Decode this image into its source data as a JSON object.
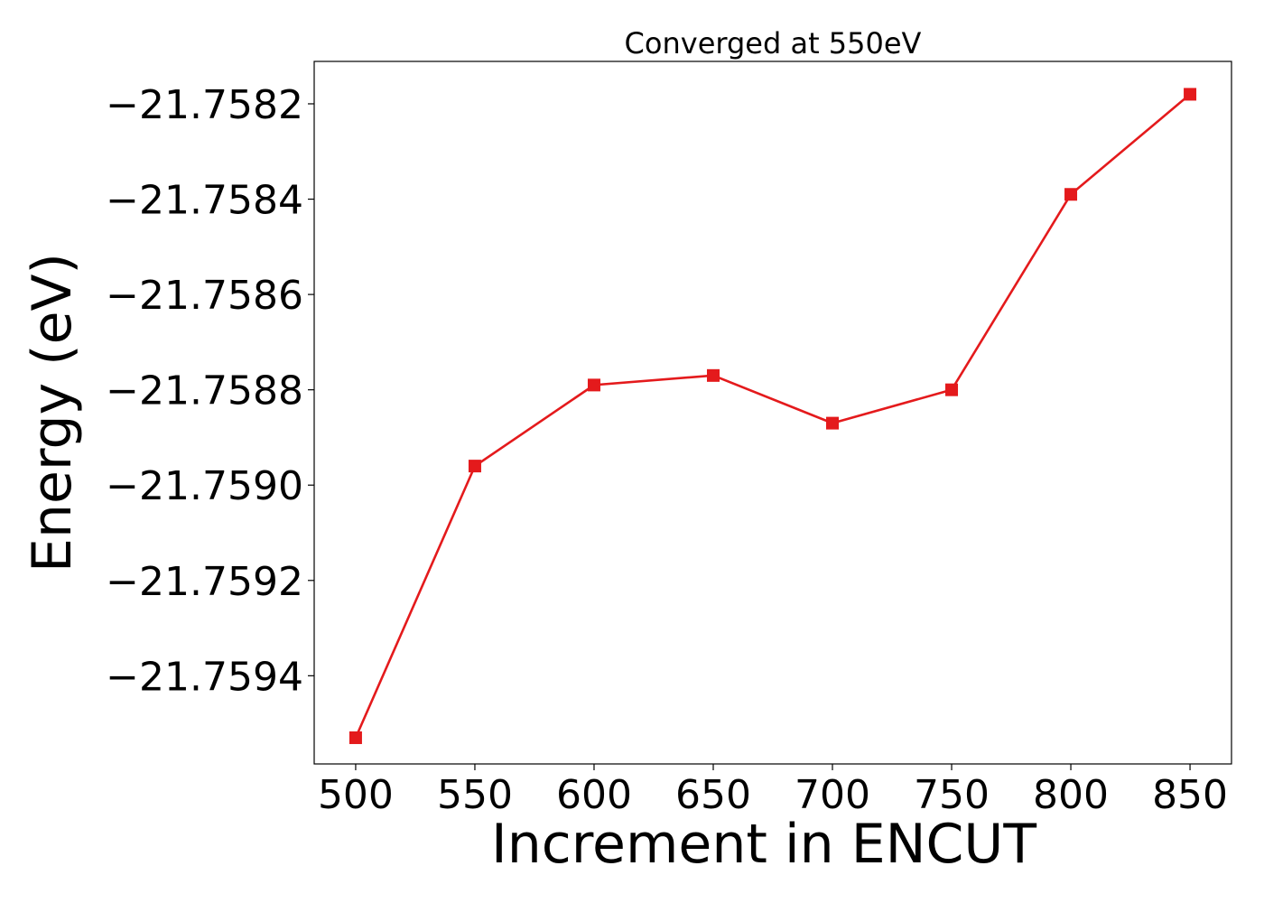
{
  "chart_data": {
    "type": "line",
    "title": "Converged at 550eV",
    "xlabel": "Increment in ENCUT",
    "ylabel": "Energy (eV)",
    "x": [
      500,
      550,
      600,
      650,
      700,
      750,
      800,
      850
    ],
    "series": [
      {
        "values": [
          -21.75953,
          -21.75896,
          -21.75879,
          -21.75877,
          -21.75887,
          -21.7588,
          -21.75839,
          -21.75818
        ],
        "color": "#e41a1c",
        "marker": "square"
      }
    ],
    "x_ticks": [
      500,
      550,
      600,
      650,
      700,
      750,
      800,
      850
    ],
    "x_tick_labels": [
      "500",
      "550",
      "600",
      "650",
      "700",
      "750",
      "800",
      "850"
    ],
    "y_ticks": [
      -21.7594,
      -21.7592,
      -21.759,
      -21.7588,
      -21.7586,
      -21.7584,
      -21.7582
    ],
    "y_tick_labels": [
      "−21.7594",
      "−21.7592",
      "−21.7590",
      "−21.7588",
      "−21.7586",
      "−21.7584",
      "−21.7582"
    ],
    "xlim": [
      482.6,
      867.4
    ],
    "ylim": [
      -21.759585,
      -21.758111
    ],
    "grid": false,
    "legend": "none"
  }
}
